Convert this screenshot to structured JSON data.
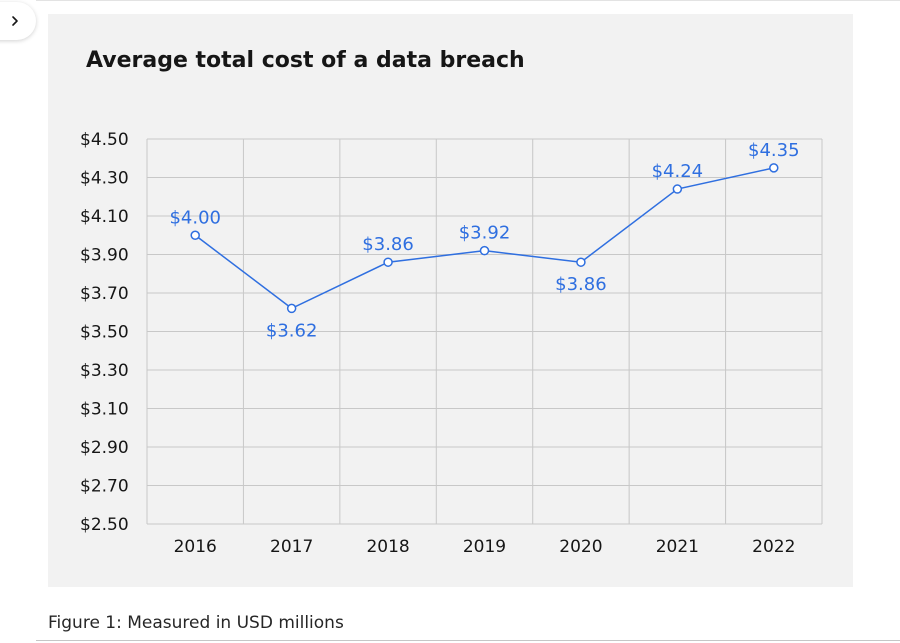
{
  "page": {
    "nav_icon": "chevron-right-icon",
    "caption": "Figure 1: Measured in USD millions"
  },
  "colors": {
    "panel_background": "#f2f2f2",
    "series_line": "#2f6fe0",
    "data_label": "#2f6fe0",
    "grid": "#c8c8c8",
    "text": "#161616"
  },
  "chart_data": {
    "type": "line",
    "title": "Average total cost of a data breach",
    "xlabel": "",
    "ylabel": "",
    "categories": [
      "2016",
      "2017",
      "2018",
      "2019",
      "2020",
      "2021",
      "2022"
    ],
    "series": [
      {
        "values": [
          4.0,
          3.62,
          3.86,
          3.92,
          3.86,
          4.24,
          4.35
        ],
        "labels": [
          "$4.00",
          "$3.62",
          "$3.86",
          "$3.92",
          "$3.86",
          "$4.24",
          "$4.35"
        ],
        "label_positions": [
          "above",
          "below",
          "above",
          "above",
          "below",
          "above",
          "above"
        ]
      }
    ],
    "ylim": [
      2.5,
      4.5
    ],
    "y_ticks": [
      4.5,
      4.3,
      4.1,
      3.9,
      3.7,
      3.5,
      3.3,
      3.1,
      2.9,
      2.7,
      2.5
    ],
    "y_tick_labels": [
      "$4.50",
      "$4.30",
      "$4.10",
      "$3.90",
      "$3.70",
      "$3.50",
      "$3.30",
      "$3.10",
      "$2.90",
      "$2.70",
      "$2.50"
    ],
    "grid": true,
    "legend": "none",
    "markers": "hollow-circle"
  }
}
